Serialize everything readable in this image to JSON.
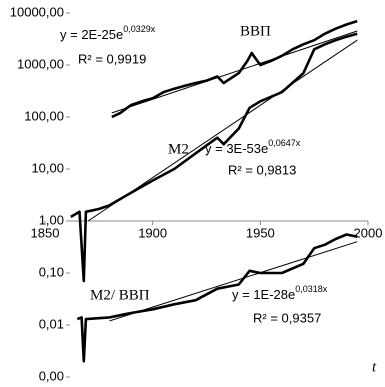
{
  "chart_data": {
    "type": "line",
    "log_y": true,
    "grid": false,
    "color": "#000000",
    "xlim": [
      1850,
      2000
    ],
    "xticks": [
      1850,
      1900,
      1950,
      2000
    ],
    "xaxis_crosses": 1,
    "x_label": "t",
    "ylim": [
      0.001,
      10000
    ],
    "yticks": [
      {
        "value": 0.001,
        "label": "0,00"
      },
      {
        "value": 0.01,
        "label": "0,01"
      },
      {
        "value": 0.1,
        "label": "0,10"
      },
      {
        "value": 1,
        "label": "1,00"
      },
      {
        "value": 10,
        "label": "10,00"
      },
      {
        "value": 100,
        "label": "100,00"
      },
      {
        "value": 1000,
        "label": "1000,00"
      },
      {
        "value": 10000,
        "label": "10000,00"
      }
    ],
    "series": [
      {
        "name": "ВВП",
        "color": "#000000",
        "x": [
          1881,
          1885,
          1890,
          1895,
          1900,
          1905,
          1910,
          1915,
          1920,
          1925,
          1930,
          1933,
          1940,
          1944,
          1946,
          1950,
          1955,
          1960,
          1965,
          1970,
          1975,
          1980,
          1985,
          1990,
          1995
        ],
        "values": [
          100,
          120,
          170,
          200,
          230,
          300,
          350,
          400,
          450,
          500,
          600,
          450,
          700,
          1200,
          1700,
          1000,
          1200,
          1500,
          2000,
          2500,
          3000,
          4000,
          5000,
          6000,
          7000
        ],
        "trend": {
          "x": [
            1881,
            1995
          ],
          "values": [
            120,
            4500
          ]
        },
        "equation": "y = 2E-25e",
        "exponent": "0,0329x",
        "r2": "R² = 0,9919"
      },
      {
        "name": "M2",
        "color": "#000000",
        "x": [
          1862,
          1866,
          1868,
          1869,
          1875,
          1880,
          1890,
          1900,
          1910,
          1920,
          1930,
          1933,
          1940,
          1945,
          1950,
          1960,
          1970,
          1975,
          1980,
          1985,
          1990,
          1995
        ],
        "values": [
          1.2,
          1.5,
          0.07,
          1.5,
          1.7,
          2,
          3.5,
          6,
          10,
          20,
          40,
          30,
          60,
          150,
          200,
          300,
          700,
          2000,
          2500,
          3000,
          3500,
          4000
        ],
        "trend": {
          "x": [
            1870,
            1995
          ],
          "values": [
            1,
            3000
          ]
        },
        "equation": "y = 3E-53e",
        "exponent": "0,0647x",
        "r2": "R² = 0,9813"
      },
      {
        "name": "M2/ ВВП",
        "color": "#000000",
        "x": [
          1865,
          1867,
          1868,
          1869,
          1880,
          1890,
          1900,
          1910,
          1920,
          1930,
          1940,
          1945,
          1950,
          1960,
          1970,
          1975,
          1980,
          1985,
          1990,
          1995
        ],
        "values": [
          0.013,
          0.014,
          0.002,
          0.013,
          0.014,
          0.017,
          0.02,
          0.025,
          0.03,
          0.05,
          0.06,
          0.11,
          0.1,
          0.1,
          0.15,
          0.3,
          0.35,
          0.45,
          0.55,
          0.5
        ],
        "trend": {
          "x": [
            1880,
            1995
          ],
          "values": [
            0.012,
            0.4
          ]
        },
        "equation": "y = 1E-28e",
        "exponent": "0,0318x",
        "r2": "R² = 0,9357"
      }
    ]
  }
}
